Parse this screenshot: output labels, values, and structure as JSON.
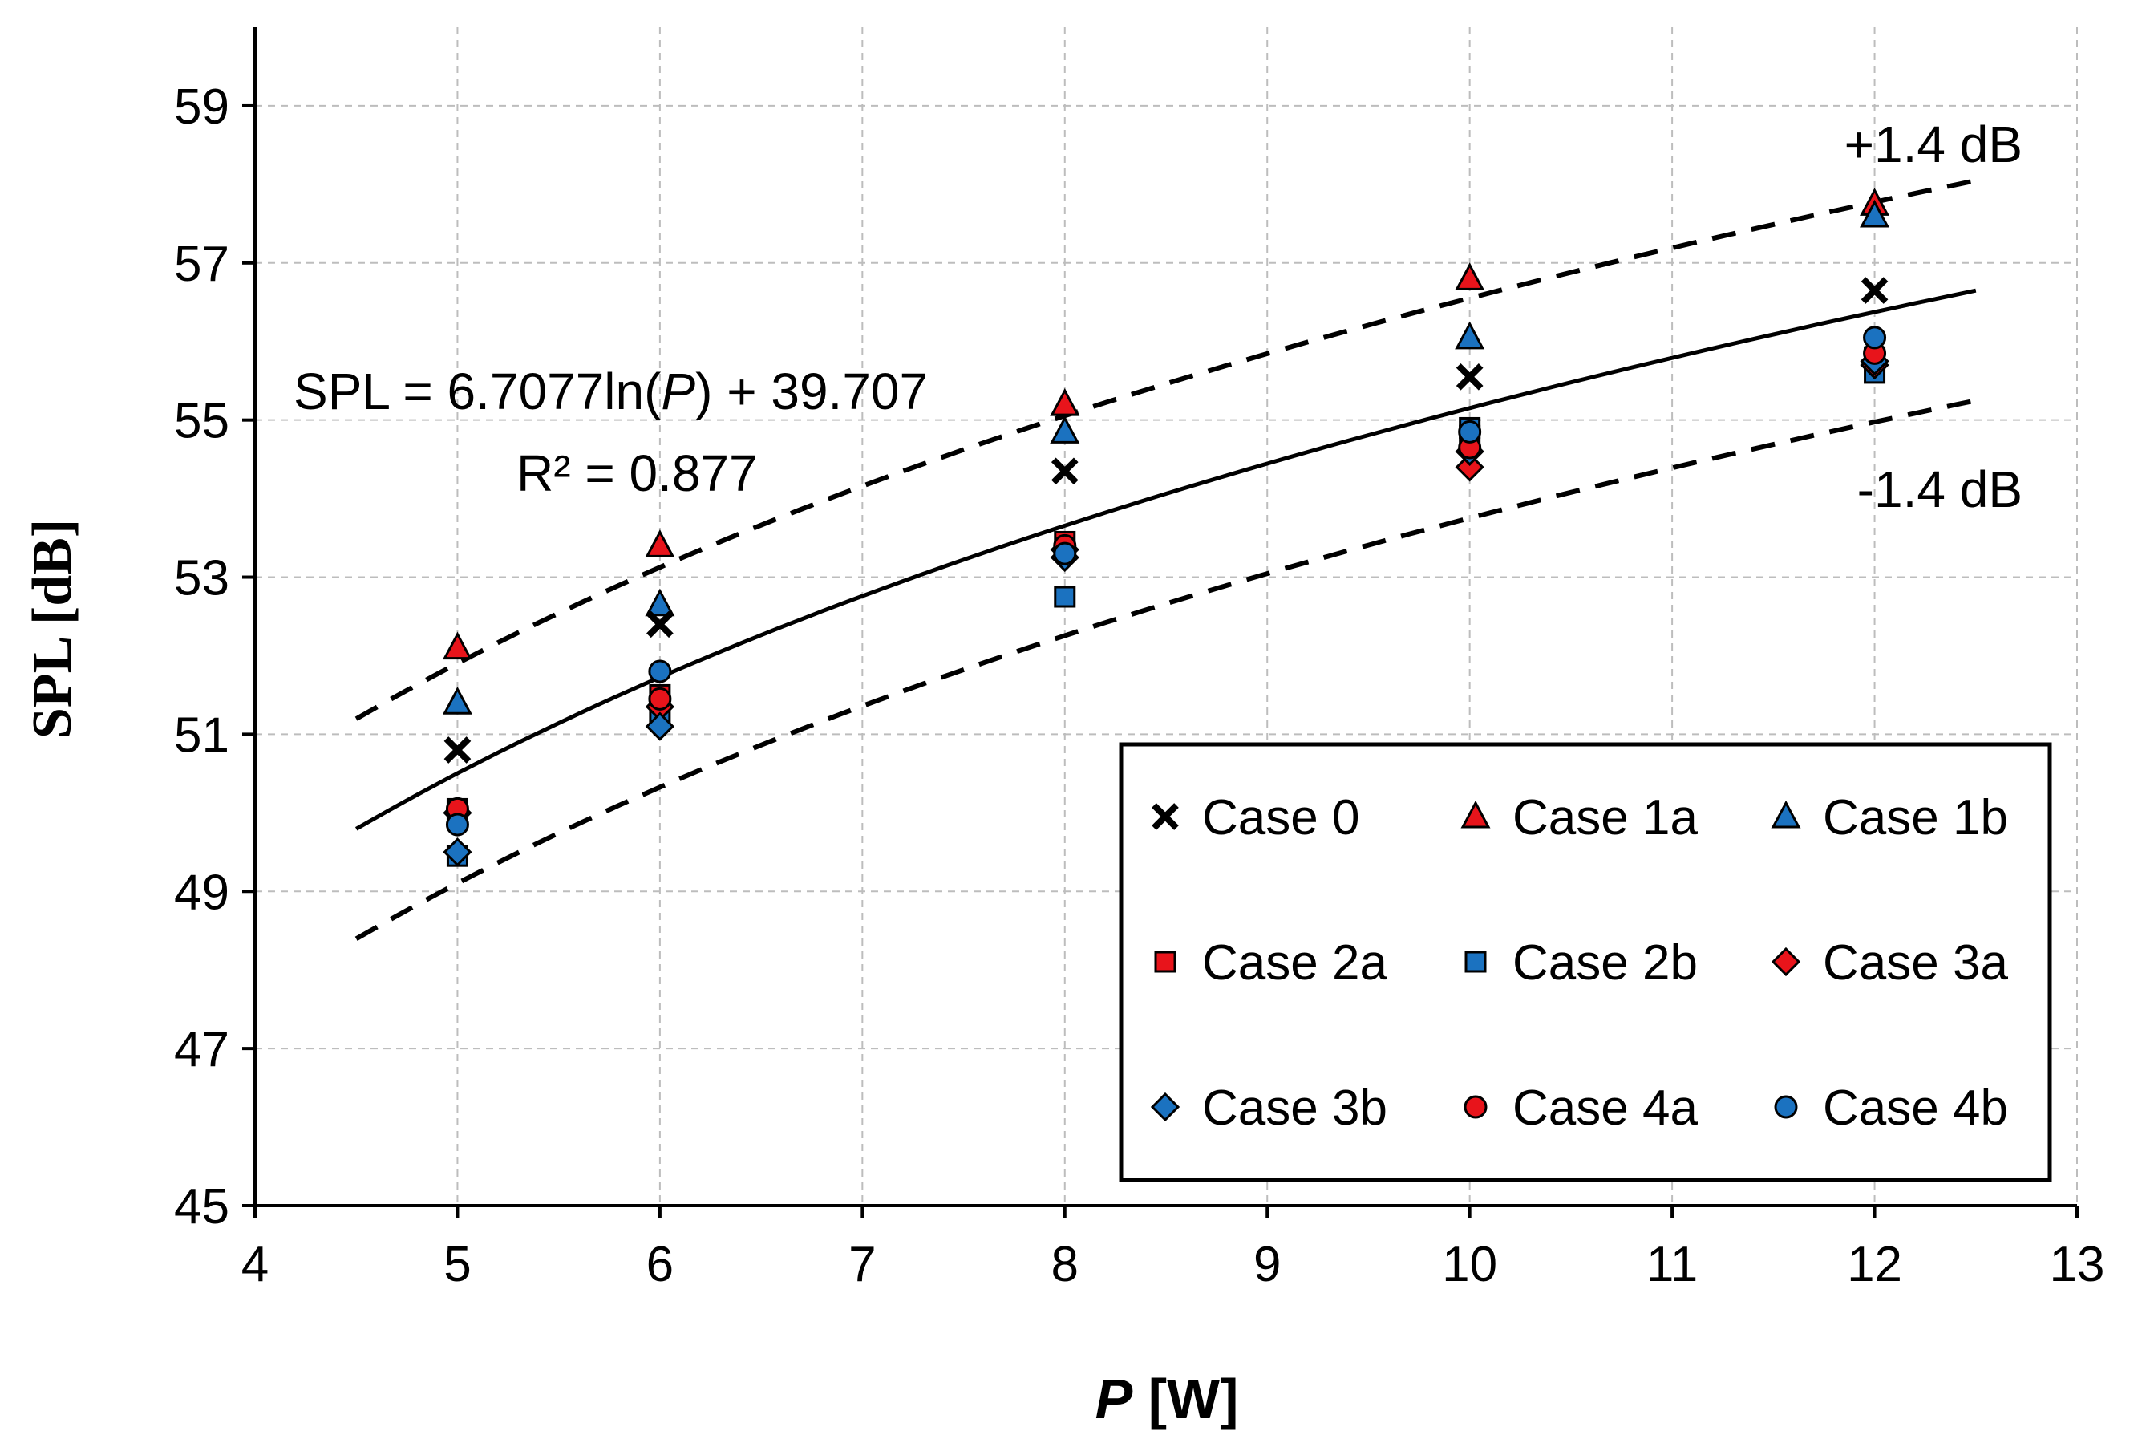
{
  "chart_data": {
    "type": "scatter",
    "xlabel_italic": "P",
    "xlabel_rest": " [W]",
    "ylabel": "SPL [dB]",
    "xlim": [
      4,
      13
    ],
    "ylim": [
      45,
      60
    ],
    "xticks": [
      4,
      5,
      6,
      7,
      8,
      9,
      10,
      11,
      12,
      13
    ],
    "yticks": [
      45,
      47,
      49,
      51,
      53,
      55,
      57,
      59
    ],
    "grid": true,
    "legend_position": "bottom-right",
    "fit": {
      "label_prefix": "SPL = 6.7077ln(",
      "label_var": "P",
      "label_suffix": ") + 39.707",
      "r2_label": "R² = 0.877",
      "a": 6.7077,
      "b": 39.707,
      "x_range": [
        4.5,
        12.5
      ],
      "band": 1.4,
      "upper_label": "+1.4 dB",
      "lower_label": "-1.4 dB"
    },
    "series": [
      {
        "name": "Case 0",
        "marker": "x",
        "fill": "#000000",
        "x": [
          5,
          6,
          8,
          10,
          12
        ],
        "y": [
          50.8,
          52.4,
          54.35,
          55.55,
          56.65
        ]
      },
      {
        "name": "Case 1a",
        "marker": "triangle",
        "fill": "#e8141b",
        "x": [
          5,
          6,
          8,
          10,
          12
        ],
        "y": [
          52.1,
          53.4,
          55.2,
          56.8,
          57.75
        ]
      },
      {
        "name": "Case 1b",
        "marker": "triangle",
        "fill": "#1b72c0",
        "x": [
          5,
          6,
          8,
          10,
          12
        ],
        "y": [
          51.4,
          52.65,
          54.85,
          56.05,
          57.6
        ]
      },
      {
        "name": "Case 2a",
        "marker": "square",
        "fill": "#e8141b",
        "x": [
          5,
          6,
          8,
          10,
          12
        ],
        "y": [
          50.05,
          51.5,
          53.45,
          54.8,
          55.8
        ]
      },
      {
        "name": "Case 2b",
        "marker": "square",
        "fill": "#1b72c0",
        "x": [
          5,
          6,
          8,
          10,
          12
        ],
        "y": [
          49.45,
          51.25,
          52.75,
          54.9,
          55.6
        ]
      },
      {
        "name": "Case 3a",
        "marker": "diamond",
        "fill": "#e8141b",
        "x": [
          5,
          6,
          8,
          10,
          12
        ],
        "y": [
          50.0,
          51.35,
          53.35,
          54.4,
          55.7
        ]
      },
      {
        "name": "Case 3b",
        "marker": "diamond",
        "fill": "#1b72c0",
        "x": [
          5,
          6,
          8,
          10,
          12
        ],
        "y": [
          49.5,
          51.1,
          53.25,
          54.6,
          55.75
        ]
      },
      {
        "name": "Case 4a",
        "marker": "circle",
        "fill": "#e8141b",
        "x": [
          5,
          6,
          8,
          10,
          12
        ],
        "y": [
          50.05,
          51.45,
          53.4,
          54.65,
          55.85
        ]
      },
      {
        "name": "Case 4b",
        "marker": "circle",
        "fill": "#1b72c0",
        "x": [
          5,
          6,
          8,
          10,
          12
        ],
        "y": [
          49.85,
          51.8,
          53.3,
          54.85,
          56.05
        ]
      }
    ]
  }
}
